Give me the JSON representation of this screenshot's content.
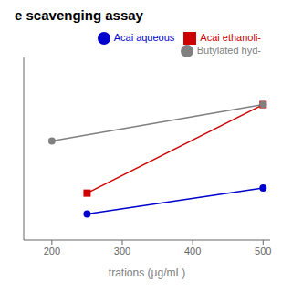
{
  "chart_data": {
    "type": "line",
    "title": "e scavenging assay",
    "xlabel": "trations (μg/mL)",
    "xlim": [
      160,
      510
    ],
    "ylim": [
      20,
      90
    ],
    "xticks": [
      200,
      300,
      400,
      500
    ],
    "yticks": [],
    "tick_labels": "x",
    "grid": false,
    "legend": "upper right",
    "series": [
      {
        "name": "Acai aqueous",
        "color": "#0000cc",
        "marker": "circle",
        "x": [
          250,
          500
        ],
        "values": [
          30,
          40
        ]
      },
      {
        "name": "Acai ethanoli-",
        "color": "#cc0000",
        "marker": "square",
        "x": [
          250,
          500
        ],
        "values": [
          38,
          72
        ]
      },
      {
        "name": "Butylated hyd-",
        "color": "#808080",
        "marker": "circle",
        "x": [
          200,
          500
        ],
        "values": [
          58,
          72
        ]
      }
    ]
  }
}
